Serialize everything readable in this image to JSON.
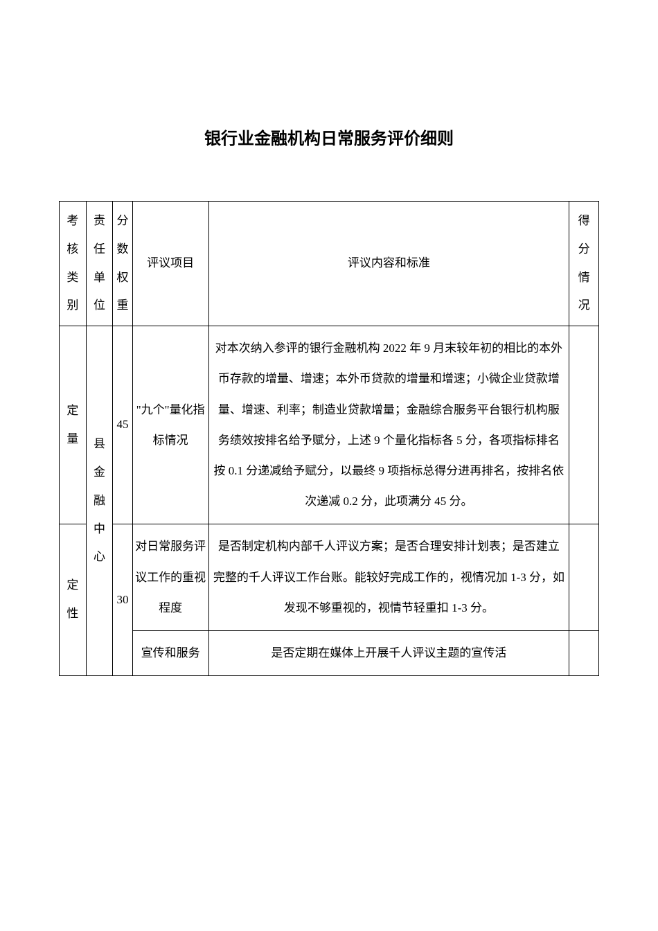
{
  "title": "银行业金融机构日常服务评价细则",
  "headers": {
    "category": "考核类别",
    "unit": "责任单位",
    "weight": "分数权重",
    "project": "评议项目",
    "content": "评议内容和标准",
    "score": "得分情况"
  },
  "rows": [
    {
      "category": "定量",
      "unit": "县金融中心",
      "weight": "45",
      "project": "\"九个\"量化指标情况",
      "content": "对本次纳入参评的银行金融机构 2022 年 9 月末较年初的相比的本外币存款的增量、增速；本外币贷款的增量和增速；小微企业贷款增量、增速、利率；制造业贷款增量；金融综合服务平台银行机构服务绩效按排名给予赋分，上述 9 个量化指标各 5 分，各项指标排名按 0.1 分递减给予赋分，以最终 9 项指标总得分进再排名，按排名依次递减 0.2 分，此项满分 45 分。"
    },
    {
      "category": "定性",
      "weight": "30",
      "project1": "对日常服务评议工作的重视程度",
      "content1": "是否制定机构内部千人评议方案；是否合理安排计划表；是否建立完整的千人评议工作台账。能较好完成工作的，视情况加 1-3 分，如发现不够重视的，视情节轻重扣 1-3 分。",
      "project2": "宣传和服务",
      "content2": "是否定期在媒体上开展千人评议主题的宣传活"
    }
  ]
}
